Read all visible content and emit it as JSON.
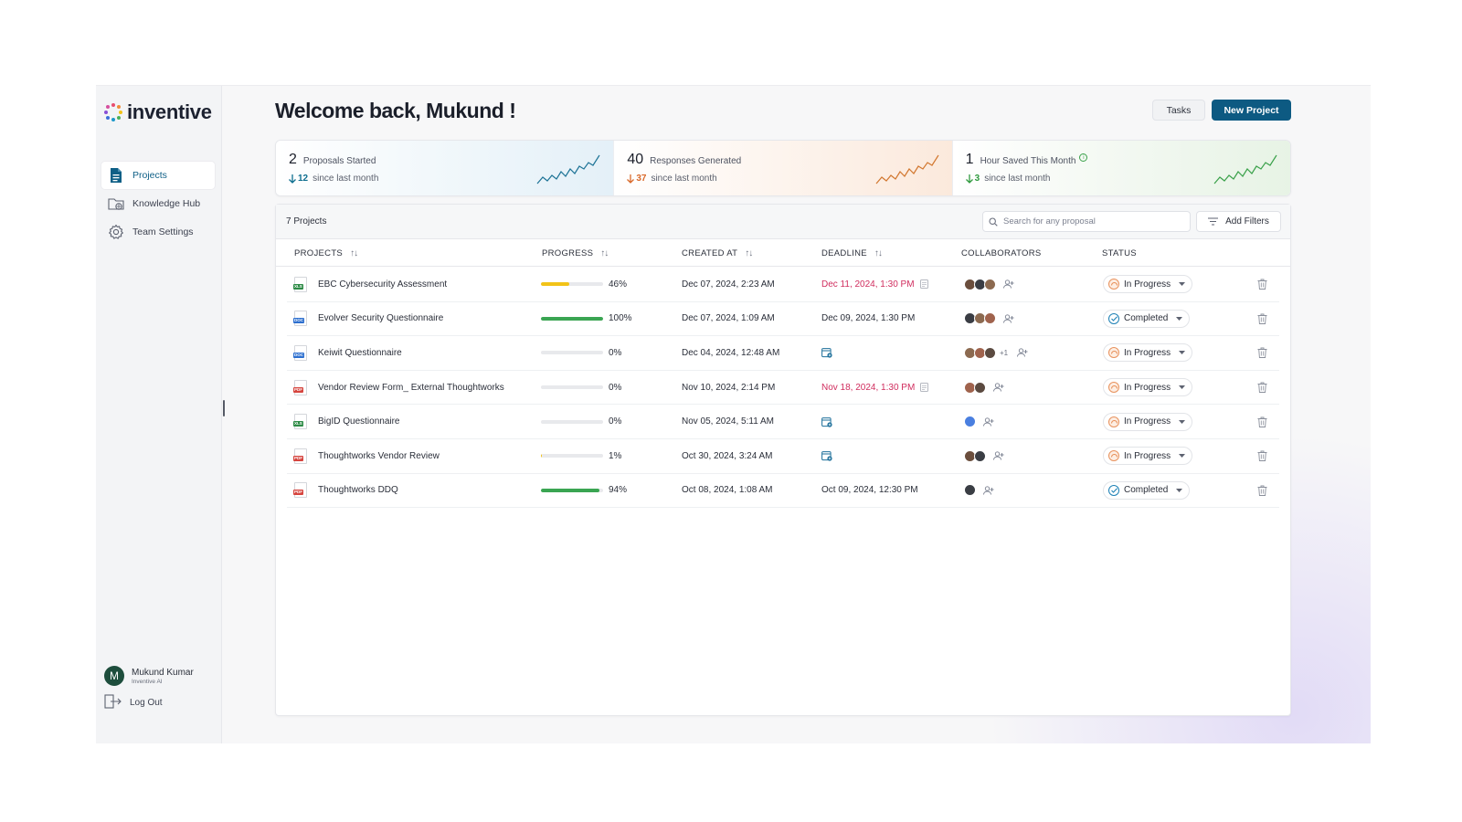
{
  "brand": {
    "name": "inventive"
  },
  "sidebar": {
    "items": [
      {
        "label": "Projects",
        "icon": "document-icon",
        "active": true
      },
      {
        "label": "Knowledge Hub",
        "icon": "folder-globe-icon",
        "active": false
      },
      {
        "label": "Team Settings",
        "icon": "gear-icon",
        "active": false
      }
    ],
    "user": {
      "initial": "M",
      "name": "Mukund Kumar",
      "org": "Inventive AI"
    },
    "logout_label": "Log Out"
  },
  "header": {
    "welcome": "Welcome back, Mukund !",
    "tasks_label": "Tasks",
    "new_project_label": "New Project"
  },
  "stats": [
    {
      "value": "2",
      "label": "Proposals Started",
      "delta": "12",
      "delta_dir": "down",
      "delta_color": "#0e6f8f",
      "sub": "since last month",
      "spark_color": "#1d7396",
      "info": false
    },
    {
      "value": "40",
      "label": "Responses Generated",
      "delta": "37",
      "delta_dir": "down",
      "delta_color": "#d9692a",
      "sub": "since last month",
      "spark_color": "#d2772f",
      "info": false
    },
    {
      "value": "1",
      "label": "Hour Saved This Month",
      "delta": "3",
      "delta_dir": "down",
      "delta_color": "#2f9a3e",
      "sub": "since last month",
      "spark_color": "#3aa14a",
      "info": true
    }
  ],
  "table": {
    "count_label": "7 Projects",
    "search_placeholder": "Search for any proposal",
    "filters_label": "Add Filters",
    "columns": [
      "PROJECTS",
      "PROGRESS",
      "CREATED AT",
      "DEADLINE",
      "COLLABORATORS",
      "STATUS"
    ],
    "rows": [
      {
        "name": "EBC Cybersecurity Assessment",
        "type": "XLS",
        "progress": 46,
        "progress_label": "46%",
        "created": "Dec 07, 2024, 2:23 AM",
        "deadline": "Dec 11, 2024, 1:30 PM",
        "deadline_overdue": true,
        "collaborators": 3,
        "more": "",
        "status": "In Progress"
      },
      {
        "name": "Evolver Security Questionnaire",
        "type": "DOC",
        "progress": 100,
        "progress_label": "100%",
        "created": "Dec 07, 2024, 1:09 AM",
        "deadline": "Dec 09, 2024, 1:30 PM",
        "deadline_overdue": false,
        "collaborators": 3,
        "more": "",
        "status": "Completed"
      },
      {
        "name": "Keiwit Questionnaire",
        "type": "DOC",
        "progress": 0,
        "progress_label": "0%",
        "created": "Dec 04, 2024, 12:48 AM",
        "deadline": "",
        "deadline_overdue": false,
        "collaborators": 3,
        "more": "+1",
        "status": "In Progress"
      },
      {
        "name": "Vendor Review Form_ External Thoughtworks",
        "type": "PDF",
        "progress": 0,
        "progress_label": "0%",
        "created": "Nov 10, 2024, 2:14 PM",
        "deadline": "Nov 18, 2024, 1:30 PM",
        "deadline_overdue": true,
        "collaborators": 2,
        "more": "",
        "status": "In Progress"
      },
      {
        "name": "BigID Questionnaire",
        "type": "XLS",
        "progress": 0,
        "progress_label": "0%",
        "created": "Nov 05, 2024, 5:11 AM",
        "deadline": "",
        "deadline_overdue": false,
        "collaborators": 1,
        "more": "",
        "status": "In Progress"
      },
      {
        "name": "Thoughtworks Vendor Review",
        "type": "PDF",
        "progress": 1,
        "progress_label": "1%",
        "created": "Oct 30, 2024, 3:24 AM",
        "deadline": "",
        "deadline_overdue": false,
        "collaborators": 2,
        "more": "",
        "status": "In Progress"
      },
      {
        "name": "Thoughtworks DDQ",
        "type": "PDF",
        "progress": 94,
        "progress_label": "94%",
        "created": "Oct 08, 2024, 1:08 AM",
        "deadline": "Oct 09, 2024, 12:30 PM",
        "deadline_overdue": false,
        "collaborators": 1,
        "more": "",
        "status": "Completed"
      }
    ]
  },
  "colors": {
    "primary": "#0d5a82",
    "progress_yellow": "#f2c318",
    "progress_green": "#3aa552",
    "overdue": "#d02d5e",
    "in_progress": "#e8925d",
    "completed": "#1d80b5"
  }
}
